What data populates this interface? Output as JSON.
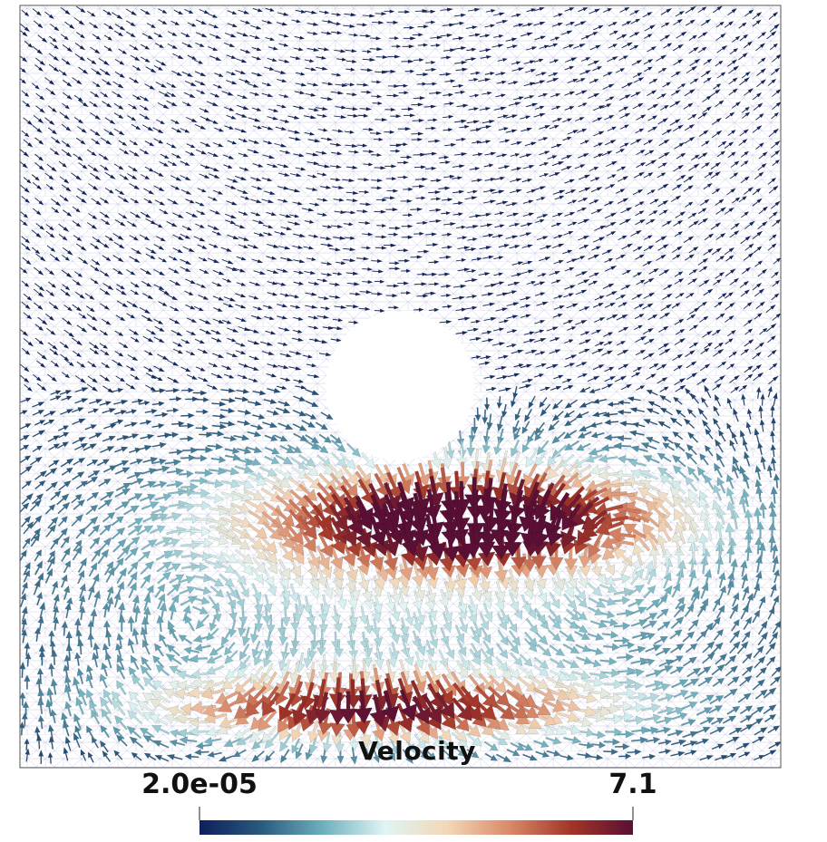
{
  "colorbar": {
    "title": "Velocity",
    "min_label": "2.0e-05",
    "max_label": "7.1",
    "range": [
      2e-05,
      7.1
    ],
    "stops": [
      "#0f1f5a",
      "#2a5a7e",
      "#6fb0bd",
      "#dff5f4",
      "#f3d7b8",
      "#d98a6a",
      "#a33527",
      "#5a0f34"
    ]
  },
  "colors": {
    "mesh": "#c8c8e6",
    "frame": "#555555",
    "background": "#ffffff",
    "hole": "#ffffff"
  }
}
